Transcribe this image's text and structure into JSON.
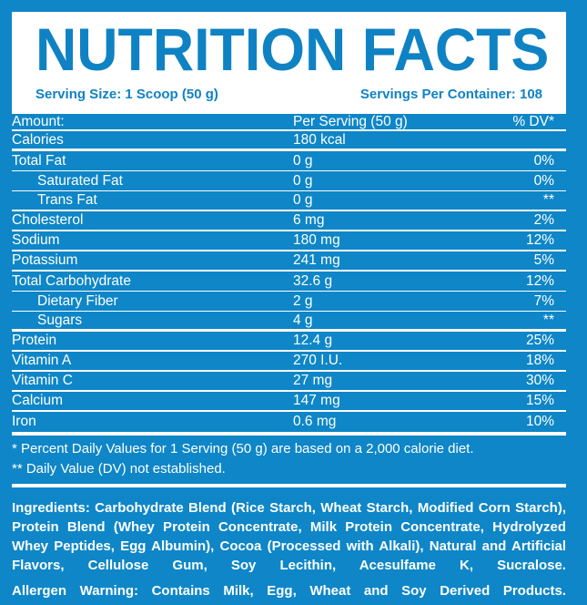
{
  "colors": {
    "background_blue": "#0E86C7",
    "text_blue": "#0F82C4",
    "white": "#FFFFFF"
  },
  "header": {
    "title": "NUTRITION FACTS",
    "serving_size": "Serving Size: 1 Scoop (50 g)",
    "servings_per_container": "Servings Per Container: 108"
  },
  "table": {
    "columns": [
      "Amount:",
      "Per Serving (50 g)",
      "% DV*"
    ],
    "rows": [
      {
        "name": "Calories",
        "amount": "180 kcal",
        "dv": ""
      },
      {
        "name": "Total Fat",
        "amount": "0 g",
        "dv": "0%"
      },
      {
        "name": "Saturated Fat",
        "amount": "0 g",
        "dv": "0%"
      },
      {
        "name": "Trans Fat",
        "amount": "0 g",
        "dv": "**"
      },
      {
        "name": "Cholesterol",
        "amount": "6 mg",
        "dv": "2%"
      },
      {
        "name": "Sodium",
        "amount": "180 mg",
        "dv": "12%"
      },
      {
        "name": "Potassium",
        "amount": "241 mg",
        "dv": "5%"
      },
      {
        "name": "Total Carbohydrate",
        "amount": "32.6 g",
        "dv": "12%"
      },
      {
        "name": "Dietary Fiber",
        "amount": "2 g",
        "dv": "7%"
      },
      {
        "name": "Sugars",
        "amount": "4 g",
        "dv": "**"
      },
      {
        "name": "Protein",
        "amount": "12.4 g",
        "dv": "25%"
      },
      {
        "name": "Vitamin A",
        "amount": "270 I.U.",
        "dv": "18%"
      },
      {
        "name": "Vitamin C",
        "amount": "27 mg",
        "dv": "30%"
      },
      {
        "name": "Calcium",
        "amount": "147 mg",
        "dv": "15%"
      },
      {
        "name": "Iron",
        "amount": "0.6 mg",
        "dv": "10%"
      }
    ]
  },
  "footnotes": [
    "* Percent Daily Values for 1 Serving (50 g) are based on a 2,000 calorie diet.",
    "** Daily Value (DV) not established."
  ],
  "ingredients": "Ingredients: Carbohydrate Blend (Rice Starch, Wheat Starch, Modified Corn Starch), Protein Blend (Whey Protein Concentrate, Milk Protein Concentrate, Hydrolyzed Whey Peptides, Egg Albumin), Cocoa (Processed with Alkali), Natural and Artificial Flavors, Cellulose Gum, Soy Lecithin, Acesulfame K, Sucralose.",
  "allergen": "Allergen Warning: Contains Milk, Egg, Wheat and Soy Derived Products."
}
